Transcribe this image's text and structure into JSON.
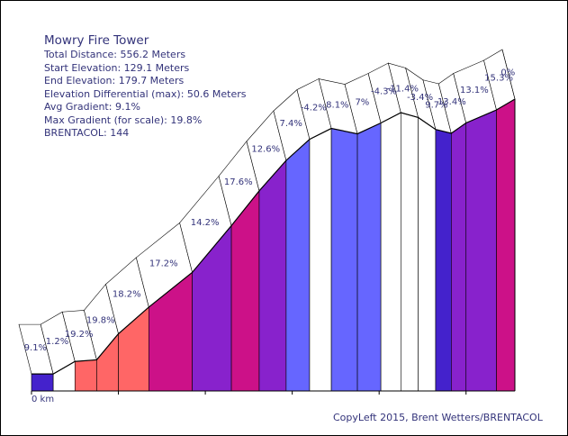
{
  "info": {
    "title": "Mowry Fire Tower",
    "total_distance": "Total Distance: 556.2 Meters",
    "start_elevation": "Start Elevation: 129.1 Meters",
    "end_elevation": "End Elevation: 179.7 Meters",
    "elevation_differential": "Elevation Differential (max): 50.6 Meters",
    "avg_gradient": "Avg Gradient: 9.1%",
    "max_gradient": "Max Gradient (for scale): 19.8%",
    "brentacol": "BRENTACOL: 144"
  },
  "credit": "CopyLeft 2015, Brent Wetters/BRENTACOL",
  "x_axis_label": "0 km",
  "colors": {
    "text": "#33337a",
    "slope_0_3": "#ffffff",
    "slope_3_6": "#5ab1f6",
    "slope_6_9": "#6666ff",
    "slope_9_12": "#4422cc",
    "slope_12_15": "#8822cc",
    "slope_15_18": "#cc1188",
    "slope_18_plus": "#ff6666"
  },
  "chart_data": {
    "type": "area",
    "title": "Mowry Fire Tower",
    "xlabel": "0 km",
    "ylabel": "",
    "segment_gradients_percent": [
      9.1,
      1.2,
      19.2,
      19.8,
      18.2,
      17.2,
      14.2,
      17.6,
      12.6,
      7.4,
      -4.2,
      8.1,
      7,
      -4.3,
      -11.4,
      -3.4,
      9.7,
      13.4,
      13.1,
      15.3,
      0
    ],
    "segment_labels": [
      "9.1%",
      "1.2%",
      "19.2%",
      "19.8%",
      "18.2%",
      "17.2%",
      "14.2%",
      "17.6%",
      "12.6%",
      "7.4%",
      "-4.2%",
      "8.1%",
      "7%",
      "-4.3%",
      "-11.4%",
      "-3.4%",
      "9.7%",
      "13.4%",
      "13.1%",
      "15.3%",
      "0%"
    ],
    "boundary_distances_m": [
      0,
      25,
      50,
      75,
      100,
      135,
      185,
      230,
      262,
      293,
      320,
      345,
      375,
      402,
      425,
      445,
      465,
      483,
      500,
      535,
      556.2
    ],
    "boundary_elevations_m": [
      129.1,
      129.1,
      131.4,
      131.7,
      136.5,
      141.4,
      147.8,
      156.4,
      162.8,
      168.4,
      172.3,
      174.3,
      173.3,
      175.3,
      177.2,
      176.3,
      174.1,
      173.4,
      175.3,
      177.7,
      179.7
    ],
    "start_elevation_m": 129.1,
    "end_elevation_m": 179.7,
    "total_distance_m": 556.2,
    "color_scale": [
      "#ffffff",
      "#5ab1f6",
      "#6666ff",
      "#4422cc",
      "#8822cc",
      "#cc1188",
      "#ff6666"
    ]
  }
}
